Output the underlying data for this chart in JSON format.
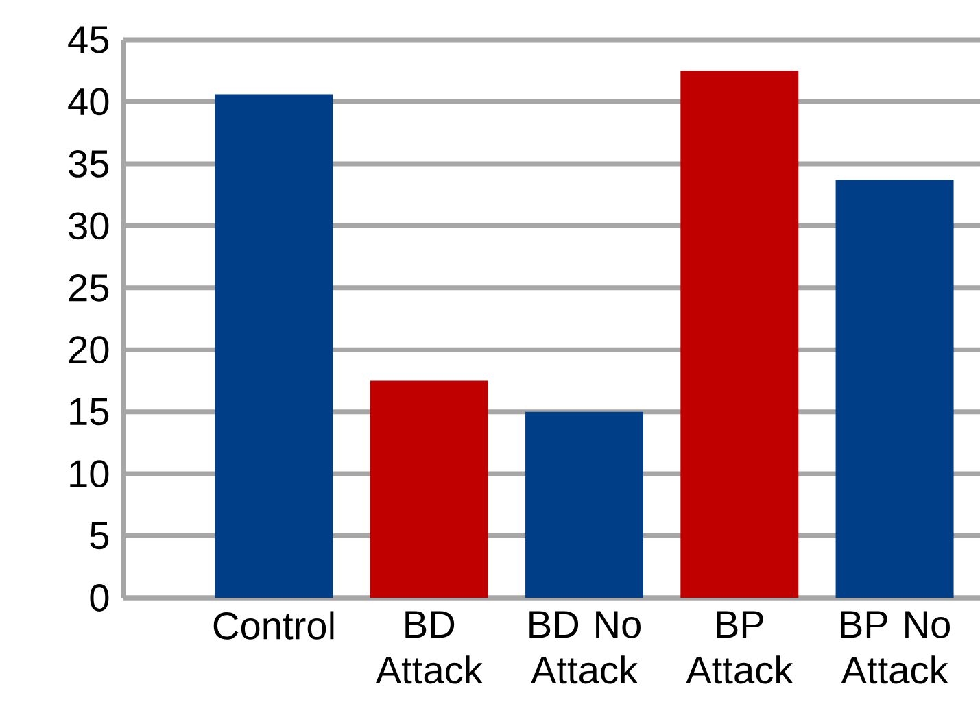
{
  "chart_data": {
    "type": "bar",
    "categories": [
      "Control",
      "BD Attack",
      "BD No Attack",
      "BP Attack",
      "BP No Attack"
    ],
    "values": [
      40.6,
      17.5,
      15.0,
      42.5,
      33.7
    ],
    "colors": [
      "#003f87",
      "#c00000",
      "#003f87",
      "#c00000",
      "#003f87"
    ],
    "ylim": [
      0,
      45
    ],
    "yticks": [
      0,
      5,
      10,
      15,
      20,
      25,
      30,
      35,
      40,
      45
    ],
    "grid": "y"
  }
}
